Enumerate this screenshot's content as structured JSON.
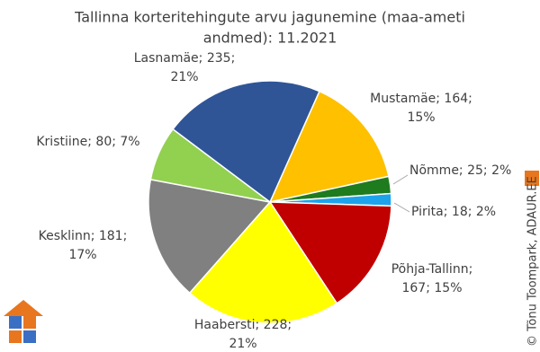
{
  "chart_data": {
    "type": "pie",
    "title": [
      "Tallinna korteritehingute arvu jagunemine (maa-ameti",
      "andmed): 11.2021"
    ],
    "labels": [
      [
        "Mustamäe; 164;",
        "15%"
      ],
      [
        "Nõmme; 25; 2%"
      ],
      [
        "Pirita; 18; 2%"
      ],
      [
        "Põhja-Tallinn;",
        "167; 15%"
      ],
      [
        "Haabersti; 228;",
        "21%"
      ],
      [
        "Kesklinn; 181;",
        "17%"
      ],
      [
        "Kristiine; 80; 7%"
      ],
      [
        "Lasnamäe; 235;",
        "21%"
      ]
    ],
    "values": [
      164,
      25,
      18,
      167,
      228,
      181,
      80,
      235
    ],
    "colors": [
      "#ffc000",
      "#1e7b1e",
      "#1ca3ec",
      "#c00000",
      "#ffff00",
      "#808080",
      "#92d050",
      "#2f5597"
    ],
    "watermark": "© Tõnu Toompark, ADAUR.EE"
  }
}
